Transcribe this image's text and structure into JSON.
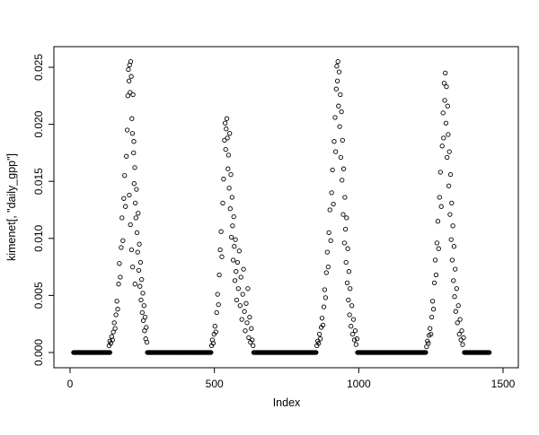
{
  "chart_data": {
    "type": "scatter",
    "title": "",
    "xlabel": "Index",
    "ylabel": "kimenet[, \"daily_gpp\"]",
    "xlim": [
      0,
      1500
    ],
    "ylim": [
      0,
      0.025
    ],
    "xticks": [
      0,
      500,
      1000,
      1500
    ],
    "xtick_labels": [
      "0",
      "500",
      "1000",
      "1500"
    ],
    "yticks": [
      0.0,
      0.005,
      0.01,
      0.015,
      0.02,
      0.025
    ],
    "ytick_labels": [
      "0.000",
      "0.005",
      "0.010",
      "0.015",
      "0.020",
      "0.025"
    ],
    "grid": false,
    "legend": "none",
    "marker": "open-circle",
    "marker_color": "#000000",
    "zero_runs": [
      {
        "x_start": 12,
        "x_end": 138,
        "step": 2,
        "y": 0
      },
      {
        "x_start": 268,
        "x_end": 488,
        "step": 2,
        "y": 0
      },
      {
        "x_start": 636,
        "x_end": 852,
        "step": 2,
        "y": 0
      },
      {
        "x_start": 996,
        "x_end": 1232,
        "step": 2,
        "y": 0
      },
      {
        "x_start": 1366,
        "x_end": 1452,
        "step": 2,
        "y": 0
      }
    ],
    "points": [
      [
        135,
        0.0006
      ],
      [
        138,
        0.001
      ],
      [
        141,
        0.0008
      ],
      [
        144,
        0.0014
      ],
      [
        147,
        0.0011
      ],
      [
        150,
        0.0018
      ],
      [
        153,
        0.0026
      ],
      [
        156,
        0.0021
      ],
      [
        159,
        0.0033
      ],
      [
        162,
        0.0045
      ],
      [
        165,
        0.0038
      ],
      [
        168,
        0.006
      ],
      [
        171,
        0.0078
      ],
      [
        174,
        0.0066
      ],
      [
        177,
        0.0092
      ],
      [
        180,
        0.0118
      ],
      [
        183,
        0.0098
      ],
      [
        186,
        0.0135
      ],
      [
        189,
        0.0155
      ],
      [
        192,
        0.0128
      ],
      [
        195,
        0.0172
      ],
      [
        198,
        0.0195
      ],
      [
        200,
        0.0225
      ],
      [
        202,
        0.0248
      ],
      [
        204,
        0.0238
      ],
      [
        206,
        0.0252
      ],
      [
        208,
        0.0228
      ],
      [
        210,
        0.0255
      ],
      [
        212,
        0.0242
      ],
      [
        214,
        0.0205
      ],
      [
        216,
        0.0192
      ],
      [
        218,
        0.0226
      ],
      [
        220,
        0.0175
      ],
      [
        222,
        0.0148
      ],
      [
        224,
        0.0162
      ],
      [
        226,
        0.0131
      ],
      [
        228,
        0.0118
      ],
      [
        230,
        0.0143
      ],
      [
        232,
        0.0105
      ],
      [
        234,
        0.0088
      ],
      [
        236,
        0.0122
      ],
      [
        238,
        0.0072
      ],
      [
        240,
        0.0095
      ],
      [
        242,
        0.0058
      ],
      [
        244,
        0.0079
      ],
      [
        246,
        0.0046
      ],
      [
        248,
        0.0064
      ],
      [
        250,
        0.0035
      ],
      [
        252,
        0.0052
      ],
      [
        254,
        0.0028
      ],
      [
        256,
        0.0041
      ],
      [
        258,
        0.0019
      ],
      [
        260,
        0.0031
      ],
      [
        262,
        0.0012
      ],
      [
        264,
        0.0022
      ],
      [
        266,
        0.0009
      ],
      [
        205,
        0.0138
      ],
      [
        209,
        0.0112
      ],
      [
        213,
        0.009
      ],
      [
        217,
        0.0075
      ],
      [
        221,
        0.0185
      ],
      [
        225,
        0.006
      ],
      [
        490,
        0.0006
      ],
      [
        493,
        0.0011
      ],
      [
        496,
        0.0008
      ],
      [
        499,
        0.0016
      ],
      [
        502,
        0.0023
      ],
      [
        505,
        0.0018
      ],
      [
        508,
        0.0035
      ],
      [
        511,
        0.0051
      ],
      [
        514,
        0.0042
      ],
      [
        517,
        0.0068
      ],
      [
        520,
        0.009
      ],
      [
        523,
        0.0106
      ],
      [
        526,
        0.0084
      ],
      [
        529,
        0.0131
      ],
      [
        532,
        0.0152
      ],
      [
        535,
        0.0186
      ],
      [
        537,
        0.0201
      ],
      [
        539,
        0.0178
      ],
      [
        541,
        0.0196
      ],
      [
        543,
        0.0205
      ],
      [
        545,
        0.0188
      ],
      [
        547,
        0.0161
      ],
      [
        549,
        0.0173
      ],
      [
        551,
        0.0144
      ],
      [
        553,
        0.0192
      ],
      [
        555,
        0.0126
      ],
      [
        557,
        0.0156
      ],
      [
        559,
        0.0101
      ],
      [
        561,
        0.0136
      ],
      [
        563,
        0.0111
      ],
      [
        565,
        0.0081
      ],
      [
        567,
        0.0119
      ],
      [
        569,
        0.0093
      ],
      [
        571,
        0.0063
      ],
      [
        573,
        0.0099
      ],
      [
        575,
        0.0071
      ],
      [
        577,
        0.0046
      ],
      [
        580,
        0.0079
      ],
      [
        583,
        0.0056
      ],
      [
        586,
        0.0089
      ],
      [
        589,
        0.0041
      ],
      [
        592,
        0.0066
      ],
      [
        595,
        0.0029
      ],
      [
        598,
        0.0051
      ],
      [
        601,
        0.0073
      ],
      [
        604,
        0.0036
      ],
      [
        607,
        0.0019
      ],
      [
        610,
        0.0043
      ],
      [
        613,
        0.0026
      ],
      [
        616,
        0.0056
      ],
      [
        619,
        0.0013
      ],
      [
        622,
        0.0031
      ],
      [
        625,
        0.0009
      ],
      [
        628,
        0.0021
      ],
      [
        631,
        0.0011
      ],
      [
        634,
        0.0006
      ],
      [
        855,
        0.0006
      ],
      [
        858,
        0.001
      ],
      [
        861,
        0.0008
      ],
      [
        864,
        0.0016
      ],
      [
        867,
        0.0012
      ],
      [
        870,
        0.0022
      ],
      [
        873,
        0.003
      ],
      [
        876,
        0.0024
      ],
      [
        879,
        0.004
      ],
      [
        882,
        0.0055
      ],
      [
        885,
        0.0048
      ],
      [
        888,
        0.007
      ],
      [
        891,
        0.0088
      ],
      [
        894,
        0.0075
      ],
      [
        897,
        0.0105
      ],
      [
        900,
        0.0125
      ],
      [
        903,
        0.0098
      ],
      [
        906,
        0.014
      ],
      [
        909,
        0.016
      ],
      [
        912,
        0.013
      ],
      [
        915,
        0.0185
      ],
      [
        918,
        0.0206
      ],
      [
        920,
        0.0176
      ],
      [
        922,
        0.0231
      ],
      [
        924,
        0.0251
      ],
      [
        926,
        0.0238
      ],
      [
        928,
        0.0255
      ],
      [
        930,
        0.0216
      ],
      [
        932,
        0.0246
      ],
      [
        934,
        0.0198
      ],
      [
        936,
        0.0226
      ],
      [
        938,
        0.0171
      ],
      [
        940,
        0.0211
      ],
      [
        942,
        0.0151
      ],
      [
        944,
        0.0186
      ],
      [
        946,
        0.0121
      ],
      [
        948,
        0.0161
      ],
      [
        950,
        0.0096
      ],
      [
        952,
        0.0136
      ],
      [
        954,
        0.0108
      ],
      [
        956,
        0.0079
      ],
      [
        958,
        0.0118
      ],
      [
        960,
        0.0061
      ],
      [
        962,
        0.0091
      ],
      [
        964,
        0.0046
      ],
      [
        966,
        0.0071
      ],
      [
        968,
        0.0033
      ],
      [
        970,
        0.0056
      ],
      [
        973,
        0.0023
      ],
      [
        976,
        0.0041
      ],
      [
        979,
        0.0016
      ],
      [
        982,
        0.0029
      ],
      [
        985,
        0.0011
      ],
      [
        988,
        0.0019
      ],
      [
        991,
        0.0007
      ],
      [
        994,
        0.0012
      ],
      [
        1235,
        0.0005
      ],
      [
        1238,
        0.001
      ],
      [
        1241,
        0.0008
      ],
      [
        1244,
        0.0015
      ],
      [
        1247,
        0.0021
      ],
      [
        1250,
        0.0016
      ],
      [
        1253,
        0.0031
      ],
      [
        1256,
        0.0045
      ],
      [
        1259,
        0.0038
      ],
      [
        1262,
        0.0061
      ],
      [
        1265,
        0.0081
      ],
      [
        1268,
        0.0068
      ],
      [
        1271,
        0.0096
      ],
      [
        1274,
        0.0115
      ],
      [
        1277,
        0.0091
      ],
      [
        1280,
        0.0136
      ],
      [
        1283,
        0.0158
      ],
      [
        1286,
        0.0128
      ],
      [
        1289,
        0.0181
      ],
      [
        1292,
        0.021
      ],
      [
        1294,
        0.0188
      ],
      [
        1296,
        0.0236
      ],
      [
        1298,
        0.0221
      ],
      [
        1300,
        0.0245
      ],
      [
        1302,
        0.0201
      ],
      [
        1304,
        0.0233
      ],
      [
        1306,
        0.0171
      ],
      [
        1308,
        0.0216
      ],
      [
        1310,
        0.0191
      ],
      [
        1312,
        0.0146
      ],
      [
        1314,
        0.0176
      ],
      [
        1316,
        0.0121
      ],
      [
        1318,
        0.0156
      ],
      [
        1320,
        0.0099
      ],
      [
        1322,
        0.0131
      ],
      [
        1324,
        0.0081
      ],
      [
        1326,
        0.0111
      ],
      [
        1328,
        0.0063
      ],
      [
        1330,
        0.0093
      ],
      [
        1332,
        0.0049
      ],
      [
        1334,
        0.0073
      ],
      [
        1336,
        0.0036
      ],
      [
        1339,
        0.0056
      ],
      [
        1342,
        0.0026
      ],
      [
        1345,
        0.0041
      ],
      [
        1348,
        0.0016
      ],
      [
        1351,
        0.0029
      ],
      [
        1354,
        0.0011
      ],
      [
        1357,
        0.0019
      ],
      [
        1360,
        0.0007
      ],
      [
        1363,
        0.0013
      ]
    ]
  }
}
